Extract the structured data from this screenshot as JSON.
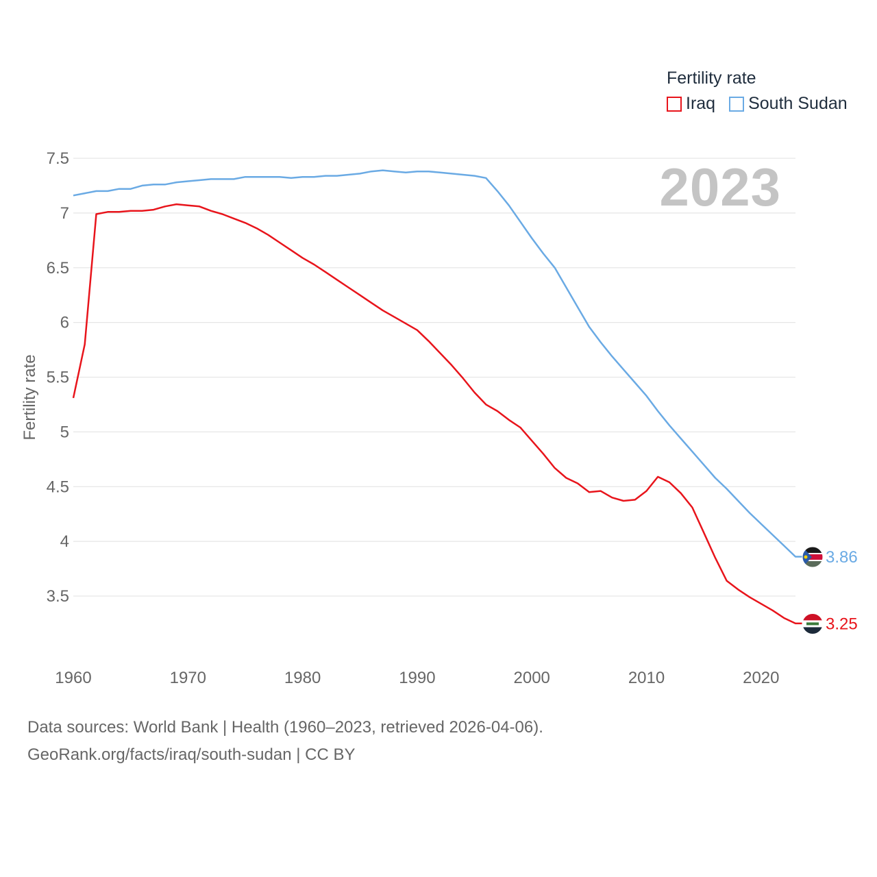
{
  "legend": {
    "title": "Fertility rate"
  },
  "year_label": "2023",
  "source": {
    "line1": "Data sources: World Bank | Health (1960–2023, retrieved 2026-04-06).",
    "line2": "GeoRank.org/facts/iraq/south-sudan | CC BY"
  },
  "chart_data": {
    "type": "line",
    "title": "",
    "xlabel": "",
    "ylabel": "Fertility rate",
    "xlim": [
      1960,
      2023
    ],
    "ylim": [
      3.1,
      7.6
    ],
    "yticks": [
      3.5,
      4,
      4.5,
      5,
      5.5,
      6,
      6.5,
      7,
      7.5
    ],
    "ytick_labels": [
      "3.5",
      "4",
      "4.5",
      "5",
      "5.5",
      "6",
      "6.5",
      "7",
      "7.5"
    ],
    "xticks": [
      1960,
      1970,
      1980,
      1990,
      2000,
      2010,
      2020
    ],
    "xtick_labels": [
      "1960",
      "1970",
      "1980",
      "1990",
      "2000",
      "2010",
      "2020"
    ],
    "grid": true,
    "legend_position": "top-right",
    "x": [
      1960,
      1961,
      1962,
      1963,
      1964,
      1965,
      1966,
      1967,
      1968,
      1969,
      1970,
      1971,
      1972,
      1973,
      1974,
      1975,
      1976,
      1977,
      1978,
      1979,
      1980,
      1981,
      1982,
      1983,
      1984,
      1985,
      1986,
      1987,
      1988,
      1989,
      1990,
      1991,
      1992,
      1993,
      1994,
      1995,
      1996,
      1997,
      1998,
      1999,
      2000,
      2001,
      2002,
      2003,
      2004,
      2005,
      2006,
      2007,
      2008,
      2009,
      2010,
      2011,
      2012,
      2013,
      2014,
      2015,
      2016,
      2017,
      2018,
      2019,
      2020,
      2021,
      2022,
      2023
    ],
    "series": [
      {
        "name": "Iraq",
        "color": "#e8141b",
        "end_label": "3.25",
        "values": [
          5.31,
          5.8,
          6.99,
          7.01,
          7.01,
          7.02,
          7.02,
          7.03,
          7.06,
          7.08,
          7.07,
          7.06,
          7.02,
          6.99,
          6.95,
          6.91,
          6.86,
          6.8,
          6.73,
          6.66,
          6.59,
          6.53,
          6.46,
          6.39,
          6.32,
          6.25,
          6.18,
          6.11,
          6.05,
          5.99,
          5.93,
          5.83,
          5.72,
          5.61,
          5.49,
          5.36,
          5.25,
          5.19,
          5.11,
          5.04,
          4.92,
          4.8,
          4.67,
          4.58,
          4.53,
          4.45,
          4.46,
          4.4,
          4.37,
          4.38,
          4.46,
          4.59,
          4.54,
          4.44,
          4.31,
          4.08,
          3.85,
          3.64,
          3.56,
          3.49,
          3.43,
          3.37,
          3.3,
          3.25
        ]
      },
      {
        "name": "South Sudan",
        "color": "#6aaae4",
        "end_label": "3.86",
        "values": [
          7.16,
          7.18,
          7.2,
          7.2,
          7.22,
          7.22,
          7.25,
          7.26,
          7.26,
          7.28,
          7.29,
          7.3,
          7.31,
          7.31,
          7.31,
          7.33,
          7.33,
          7.33,
          7.33,
          7.32,
          7.33,
          7.33,
          7.34,
          7.34,
          7.35,
          7.36,
          7.38,
          7.39,
          7.38,
          7.37,
          7.38,
          7.38,
          7.37,
          7.36,
          7.35,
          7.34,
          7.32,
          7.2,
          7.07,
          6.92,
          6.77,
          6.63,
          6.5,
          6.32,
          6.14,
          5.96,
          5.82,
          5.69,
          5.57,
          5.45,
          5.33,
          5.19,
          5.06,
          4.94,
          4.82,
          4.7,
          4.58,
          4.48,
          4.37,
          4.26,
          4.16,
          4.06,
          3.96,
          3.86
        ]
      }
    ]
  }
}
